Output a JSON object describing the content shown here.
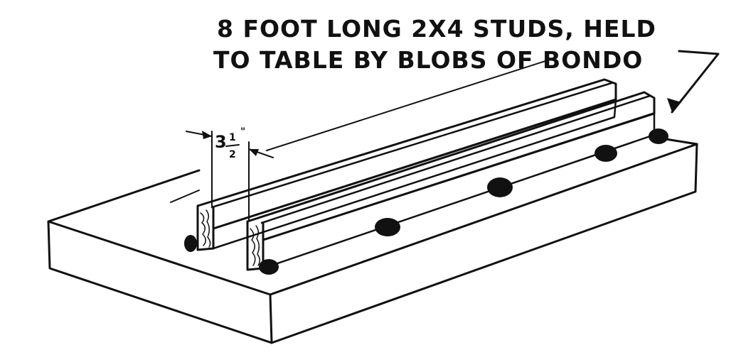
{
  "caption": {
    "line1": "8 FOOT LONG 2X4 STUDS, HELD",
    "line2": "TO TABLE BY BLOBS OF BONDO"
  },
  "dimension": {
    "whole": "3",
    "numerator": "1",
    "denominator": "2",
    "unit": "\""
  },
  "colors": {
    "ink": "#111111",
    "paper": "#ffffff"
  }
}
